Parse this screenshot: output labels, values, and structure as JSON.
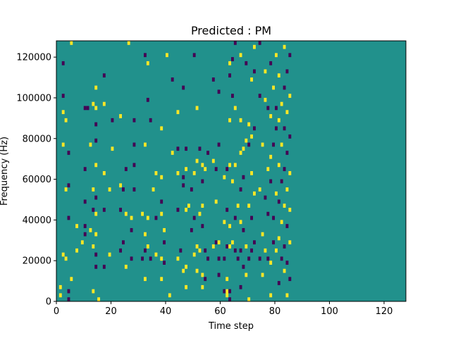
{
  "chart_data": {
    "type": "heatmap",
    "title": "Predicted : PM",
    "xlabel": "Time step",
    "ylabel": "Frequency (Hz)",
    "xlim": [
      0,
      128
    ],
    "ylim": [
      0,
      128000
    ],
    "xticks": [
      0,
      20,
      40,
      60,
      80,
      100,
      120
    ],
    "xtick_labels": [
      "0",
      "20",
      "40",
      "60",
      "80",
      "100",
      "120"
    ],
    "yticks": [
      0,
      20000,
      40000,
      60000,
      80000,
      100000,
      120000
    ],
    "ytick_labels": [
      "0",
      "20000",
      "40000",
      "60000",
      "80000",
      "100000",
      "120000"
    ],
    "grid": false,
    "legend": "none",
    "colors": {
      "background": "#21918c",
      "low": "#440154",
      "high": "#fde725"
    },
    "bin_height": 2000,
    "cells": [
      [
        1,
        2000,
        "high"
      ],
      [
        1,
        6000,
        "high"
      ],
      [
        2,
        22000,
        "high"
      ],
      [
        2,
        92000,
        "high"
      ],
      [
        2,
        76000,
        "high"
      ],
      [
        2,
        100000,
        "low"
      ],
      [
        2,
        116000,
        "low"
      ],
      [
        3,
        20000,
        "high"
      ],
      [
        3,
        54000,
        "high"
      ],
      [
        3,
        88000,
        "high"
      ],
      [
        4,
        0,
        "low"
      ],
      [
        4,
        4000,
        "low"
      ],
      [
        4,
        40000,
        "low"
      ],
      [
        4,
        56000,
        "low"
      ],
      [
        4,
        72000,
        "low"
      ],
      [
        5,
        10000,
        "high"
      ],
      [
        5,
        126000,
        "high"
      ],
      [
        7,
        24000,
        "high"
      ],
      [
        7,
        36000,
        "high"
      ],
      [
        9,
        28000,
        "high"
      ],
      [
        10,
        32000,
        "low"
      ],
      [
        10,
        36000,
        "low"
      ],
      [
        10,
        48000,
        "low"
      ],
      [
        10,
        64000,
        "low"
      ],
      [
        10,
        94000,
        "low"
      ],
      [
        11,
        94000,
        "low"
      ],
      [
        12,
        34000,
        "high"
      ],
      [
        12,
        76000,
        "high"
      ],
      [
        13,
        4000,
        "high"
      ],
      [
        13,
        26000,
        "high"
      ],
      [
        13,
        44000,
        "low"
      ],
      [
        13,
        54000,
        "high"
      ],
      [
        13,
        96000,
        "high"
      ],
      [
        14,
        16000,
        "low"
      ],
      [
        14,
        22000,
        "low"
      ],
      [
        14,
        32000,
        "high"
      ],
      [
        14,
        42000,
        "high"
      ],
      [
        14,
        50000,
        "low"
      ],
      [
        14,
        66000,
        "high"
      ],
      [
        14,
        78000,
        "low"
      ],
      [
        14,
        86000,
        "low"
      ],
      [
        14,
        94000,
        "high"
      ],
      [
        14,
        104000,
        "high"
      ],
      [
        15,
        0,
        "high"
      ],
      [
        17,
        16000,
        "low"
      ],
      [
        17,
        44000,
        "low"
      ],
      [
        17,
        62000,
        "high"
      ],
      [
        17,
        96000,
        "high"
      ],
      [
        17,
        110000,
        "low"
      ],
      [
        19,
        22000,
        "high"
      ],
      [
        19,
        54000,
        "high"
      ],
      [
        20,
        88000,
        "low"
      ],
      [
        20,
        74000,
        "high"
      ],
      [
        23,
        24000,
        "low"
      ],
      [
        23,
        44000,
        "low"
      ],
      [
        23,
        56000,
        "high"
      ],
      [
        23,
        90000,
        "high"
      ],
      [
        24,
        28000,
        "low"
      ],
      [
        24,
        54000,
        "low"
      ],
      [
        25,
        16000,
        "high"
      ],
      [
        25,
        42000,
        "high"
      ],
      [
        25,
        64000,
        "low"
      ],
      [
        26,
        126000,
        "high"
      ],
      [
        27,
        20000,
        "low"
      ],
      [
        27,
        34000,
        "low"
      ],
      [
        27,
        40000,
        "high"
      ],
      [
        28,
        88000,
        "low"
      ],
      [
        28,
        76000,
        "low"
      ],
      [
        28,
        66000,
        "low"
      ],
      [
        28,
        54000,
        "low"
      ],
      [
        31,
        20000,
        "low"
      ],
      [
        31,
        42000,
        "high"
      ],
      [
        32,
        10000,
        "high"
      ],
      [
        32,
        24000,
        "low"
      ],
      [
        32,
        32000,
        "high"
      ],
      [
        32,
        76000,
        "high"
      ],
      [
        32,
        120000,
        "low"
      ],
      [
        33,
        26000,
        "high"
      ],
      [
        33,
        40000,
        "high"
      ],
      [
        33,
        98000,
        "low"
      ],
      [
        33,
        116000,
        "high"
      ],
      [
        34,
        20000,
        "low"
      ],
      [
        34,
        88000,
        "low"
      ],
      [
        35,
        54000,
        "high"
      ],
      [
        36,
        22000,
        "high"
      ],
      [
        36,
        40000,
        "low"
      ],
      [
        36,
        62000,
        "high"
      ],
      [
        38,
        10000,
        "high"
      ],
      [
        38,
        20000,
        "high"
      ],
      [
        38,
        42000,
        "high"
      ],
      [
        38,
        48000,
        "low"
      ],
      [
        38,
        60000,
        "high"
      ],
      [
        38,
        84000,
        "high"
      ],
      [
        39,
        18000,
        "low"
      ],
      [
        39,
        28000,
        "low"
      ],
      [
        39,
        34000,
        "high"
      ],
      [
        40,
        120000,
        "high"
      ],
      [
        41,
        2000,
        "high"
      ],
      [
        42,
        72000,
        "high"
      ],
      [
        42,
        108000,
        "low"
      ],
      [
        44,
        20000,
        "high"
      ],
      [
        44,
        44000,
        "low"
      ],
      [
        44,
        62000,
        "high"
      ],
      [
        44,
        74000,
        "low"
      ],
      [
        44,
        92000,
        "high"
      ],
      [
        45,
        24000,
        "low"
      ],
      [
        46,
        14000,
        "high"
      ],
      [
        46,
        56000,
        "low"
      ],
      [
        46,
        60000,
        "low"
      ],
      [
        46,
        104000,
        "low"
      ],
      [
        47,
        6000,
        "high"
      ],
      [
        47,
        16000,
        "high"
      ],
      [
        47,
        44000,
        "high"
      ],
      [
        47,
        64000,
        "high"
      ],
      [
        47,
        74000,
        "low"
      ],
      [
        48,
        46000,
        "high"
      ],
      [
        49,
        34000,
        "low"
      ],
      [
        49,
        54000,
        "low"
      ],
      [
        50,
        22000,
        "high"
      ],
      [
        50,
        40000,
        "low"
      ],
      [
        50,
        62000,
        "high"
      ],
      [
        50,
        120000,
        "low"
      ],
      [
        51,
        14000,
        "high"
      ],
      [
        51,
        26000,
        "high"
      ],
      [
        51,
        68000,
        "high"
      ],
      [
        51,
        94000,
        "high"
      ],
      [
        52,
        24000,
        "high"
      ],
      [
        52,
        42000,
        "high"
      ],
      [
        52,
        74000,
        "low"
      ],
      [
        53,
        6000,
        "high"
      ],
      [
        53,
        12000,
        "high"
      ],
      [
        53,
        36000,
        "low"
      ],
      [
        53,
        46000,
        "high"
      ],
      [
        53,
        58000,
        "low"
      ],
      [
        53,
        66000,
        "high"
      ],
      [
        54,
        10000,
        "low"
      ],
      [
        54,
        24000,
        "low"
      ],
      [
        54,
        64000,
        "high"
      ],
      [
        55,
        20000,
        "low"
      ],
      [
        55,
        72000,
        "low"
      ],
      [
        57,
        26000,
        "high"
      ],
      [
        57,
        68000,
        "high"
      ],
      [
        57,
        108000,
        "low"
      ],
      [
        58,
        28000,
        "low"
      ],
      [
        58,
        48000,
        "high"
      ],
      [
        58,
        64000,
        "low"
      ],
      [
        59,
        12000,
        "low"
      ],
      [
        59,
        20000,
        "low"
      ],
      [
        59,
        28000,
        "high"
      ],
      [
        59,
        76000,
        "low"
      ],
      [
        59,
        102000,
        "low"
      ],
      [
        61,
        4000,
        "low"
      ],
      [
        61,
        20000,
        "low"
      ],
      [
        61,
        38000,
        "high"
      ],
      [
        61,
        60000,
        "high"
      ],
      [
        62,
        2000,
        "high"
      ],
      [
        62,
        4000,
        "high"
      ],
      [
        62,
        10000,
        "high"
      ],
      [
        62,
        26000,
        "low"
      ],
      [
        62,
        44000,
        "low"
      ],
      [
        62,
        64000,
        "low"
      ],
      [
        63,
        0,
        "low"
      ],
      [
        63,
        4000,
        "low"
      ],
      [
        63,
        26000,
        "high"
      ],
      [
        63,
        36000,
        "high"
      ],
      [
        63,
        66000,
        "high"
      ],
      [
        63,
        88000,
        "high"
      ],
      [
        63,
        110000,
        "low"
      ],
      [
        63,
        116000,
        "high"
      ],
      [
        64,
        28000,
        "high"
      ],
      [
        64,
        58000,
        "high"
      ],
      [
        64,
        100000,
        "low"
      ],
      [
        64,
        118000,
        "low"
      ],
      [
        65,
        24000,
        "low"
      ],
      [
        65,
        40000,
        "low"
      ],
      [
        65,
        66000,
        "high"
      ],
      [
        65,
        94000,
        "high"
      ],
      [
        65,
        126000,
        "low"
      ],
      [
        66,
        20000,
        "low"
      ],
      [
        66,
        46000,
        "high"
      ],
      [
        67,
        6000,
        "low"
      ],
      [
        67,
        24000,
        "low"
      ],
      [
        67,
        38000,
        "high"
      ],
      [
        67,
        54000,
        "low"
      ],
      [
        67,
        72000,
        "high"
      ],
      [
        67,
        88000,
        "high"
      ],
      [
        67,
        120000,
        "high"
      ],
      [
        68,
        16000,
        "low"
      ],
      [
        68,
        34000,
        "low"
      ],
      [
        68,
        60000,
        "low"
      ],
      [
        68,
        74000,
        "high"
      ],
      [
        69,
        12000,
        "high"
      ],
      [
        69,
        26000,
        "high"
      ],
      [
        69,
        78000,
        "high"
      ],
      [
        69,
        116000,
        "low"
      ],
      [
        70,
        0,
        "high"
      ],
      [
        70,
        20000,
        "low"
      ],
      [
        70,
        46000,
        "high"
      ],
      [
        70,
        76000,
        "low"
      ],
      [
        70,
        86000,
        "high"
      ],
      [
        71,
        24000,
        "low"
      ],
      [
        71,
        40000,
        "low"
      ],
      [
        71,
        62000,
        "high"
      ],
      [
        71,
        80000,
        "high"
      ],
      [
        71,
        108000,
        "high"
      ],
      [
        72,
        28000,
        "low"
      ],
      [
        72,
        52000,
        "high"
      ],
      [
        72,
        84000,
        "low"
      ],
      [
        72,
        112000,
        "low"
      ],
      [
        72,
        124000,
        "high"
      ],
      [
        74,
        20000,
        "low"
      ],
      [
        74,
        54000,
        "high"
      ],
      [
        74,
        100000,
        "low"
      ],
      [
        74,
        126000,
        "low"
      ],
      [
        75,
        12000,
        "high"
      ],
      [
        75,
        32000,
        "high"
      ],
      [
        75,
        76000,
        "high"
      ],
      [
        76,
        24000,
        "high"
      ],
      [
        76,
        50000,
        "low"
      ],
      [
        76,
        98000,
        "high"
      ],
      [
        76,
        112000,
        "high"
      ],
      [
        77,
        20000,
        "low"
      ],
      [
        77,
        42000,
        "low"
      ],
      [
        77,
        64000,
        "high"
      ],
      [
        77,
        94000,
        "low"
      ],
      [
        78,
        2000,
        "high"
      ],
      [
        78,
        18000,
        "high"
      ],
      [
        78,
        58000,
        "low"
      ],
      [
        78,
        70000,
        "high"
      ],
      [
        78,
        90000,
        "high"
      ],
      [
        78,
        116000,
        "low"
      ],
      [
        79,
        28000,
        "low"
      ],
      [
        79,
        40000,
        "low"
      ],
      [
        79,
        76000,
        "low"
      ],
      [
        79,
        104000,
        "high"
      ],
      [
        80,
        24000,
        "high"
      ],
      [
        80,
        52000,
        "high"
      ],
      [
        80,
        84000,
        "low"
      ],
      [
        80,
        94000,
        "low"
      ],
      [
        80,
        120000,
        "high"
      ],
      [
        81,
        8000,
        "low"
      ],
      [
        81,
        30000,
        "high"
      ],
      [
        81,
        48000,
        "low"
      ],
      [
        81,
        66000,
        "high"
      ],
      [
        81,
        88000,
        "high"
      ],
      [
        81,
        110000,
        "high"
      ],
      [
        82,
        20000,
        "low"
      ],
      [
        82,
        38000,
        "high"
      ],
      [
        82,
        58000,
        "low"
      ],
      [
        82,
        76000,
        "high"
      ],
      [
        82,
        96000,
        "high"
      ],
      [
        83,
        14000,
        "high"
      ],
      [
        83,
        26000,
        "low"
      ],
      [
        83,
        46000,
        "high"
      ],
      [
        83,
        64000,
        "low"
      ],
      [
        83,
        84000,
        "low"
      ],
      [
        83,
        104000,
        "low"
      ],
      [
        83,
        124000,
        "high"
      ],
      [
        84,
        2000,
        "high"
      ],
      [
        84,
        18000,
        "low"
      ],
      [
        84,
        36000,
        "low"
      ],
      [
        84,
        54000,
        "high"
      ],
      [
        84,
        72000,
        "low"
      ],
      [
        84,
        92000,
        "high"
      ],
      [
        84,
        112000,
        "low"
      ],
      [
        85,
        10000,
        "low"
      ],
      [
        85,
        28000,
        "high"
      ],
      [
        85,
        44000,
        "high"
      ],
      [
        85,
        62000,
        "high"
      ],
      [
        85,
        80000,
        "low"
      ],
      [
        85,
        100000,
        "high"
      ],
      [
        85,
        120000,
        "low"
      ]
    ]
  }
}
